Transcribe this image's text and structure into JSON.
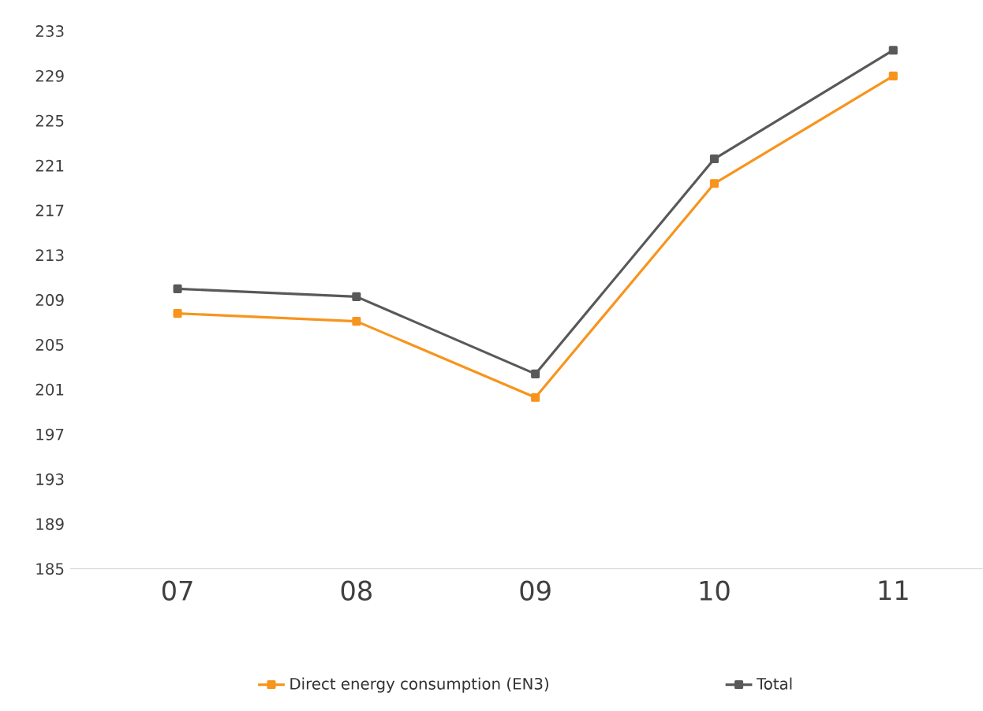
{
  "chart_data": {
    "type": "line",
    "categories": [
      "07",
      "08",
      "09",
      "10",
      "11"
    ],
    "series": [
      {
        "name": "Direct energy consumption (EN3)",
        "color": "#f7941d",
        "values": [
          207.8,
          207.1,
          200.3,
          219.4,
          229.0
        ]
      },
      {
        "name": "Total",
        "color": "#595959",
        "values": [
          210.0,
          209.3,
          202.4,
          221.6,
          231.3
        ]
      }
    ],
    "ylim": [
      185,
      233
    ],
    "yticks": [
      185,
      189,
      193,
      197,
      201,
      205,
      209,
      213,
      217,
      221,
      225,
      229,
      233
    ],
    "legend": "bottom",
    "marker": "square",
    "line_style": "solid"
  }
}
